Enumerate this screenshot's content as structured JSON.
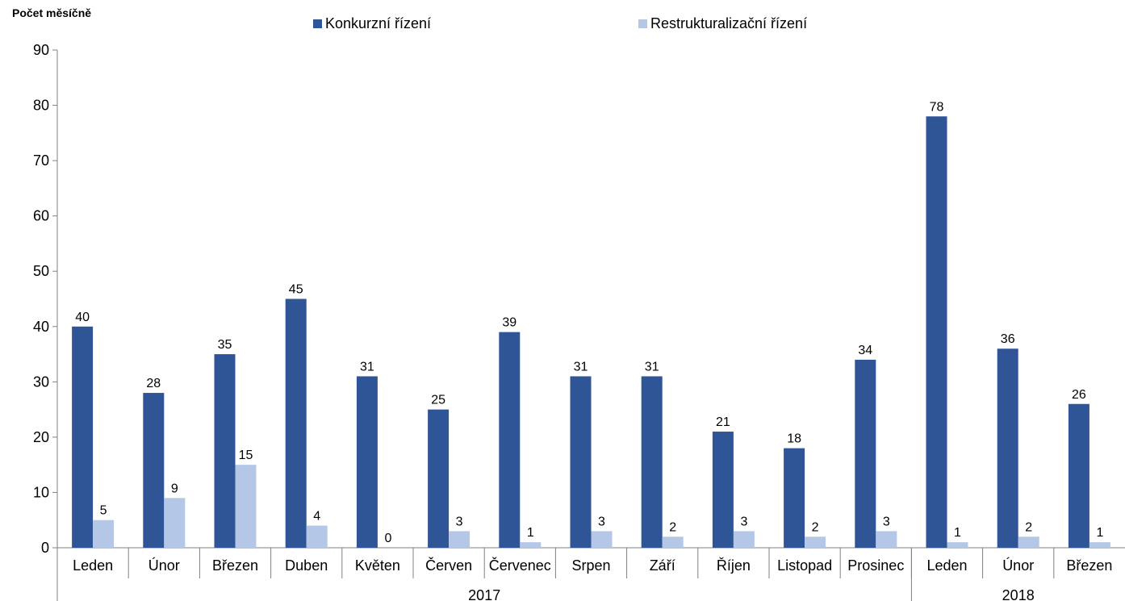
{
  "chart_data": {
    "type": "bar",
    "ylabel": "Počet měsíčně",
    "ylim": [
      0,
      90
    ],
    "yticks": [
      0,
      10,
      20,
      30,
      40,
      50,
      60,
      70,
      80,
      90
    ],
    "categories": [
      "Leden",
      "Únor",
      "Březen",
      "Duben",
      "Květen",
      "Červen",
      "Červenec",
      "Srpen",
      "Září",
      "Říjen",
      "Listopad",
      "Prosinec",
      "Leden",
      "Únor",
      "Březen"
    ],
    "groups": [
      {
        "label": "2017",
        "count": 12
      },
      {
        "label": "2018",
        "count": 3
      }
    ],
    "series": [
      {
        "name": "Konkurzní řízení",
        "color": "#2f5597",
        "values": [
          40,
          28,
          35,
          45,
          31,
          25,
          39,
          31,
          31,
          21,
          18,
          34,
          78,
          36,
          26
        ]
      },
      {
        "name": "Restrukturalizační řízení",
        "color": "#b4c7e7",
        "values": [
          5,
          9,
          15,
          4,
          0,
          3,
          1,
          3,
          2,
          3,
          2,
          3,
          1,
          2,
          1
        ]
      }
    ],
    "grid": false,
    "legend_position": "top"
  }
}
